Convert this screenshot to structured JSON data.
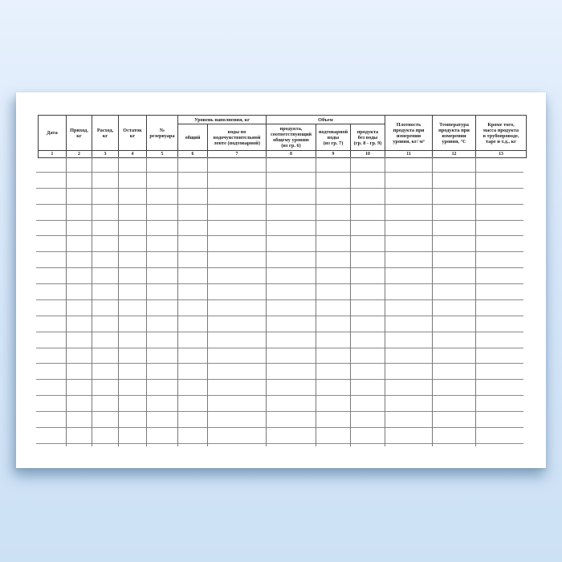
{
  "page": {
    "background_top_color": "#e8f1fd",
    "background_bottom_color": "#cde1f5",
    "sheet_color": "#ffffff",
    "line_color": "#8a8a8a",
    "header_border_color": "#3e3e3e",
    "text_color": "#1c1c1c"
  },
  "table": {
    "group_headers": [
      {
        "label": "Уровень наполнения, кг"
      },
      {
        "label": "Объем"
      }
    ],
    "columns": [
      {
        "num": "1",
        "label": "Дата"
      },
      {
        "num": "2",
        "label": "Приход,\nкг"
      },
      {
        "num": "3",
        "label": "Расход,\nкг"
      },
      {
        "num": "4",
        "label": "Остаток\nкг"
      },
      {
        "num": "5",
        "label": "№\nрезервуара"
      },
      {
        "num": "6",
        "label": "общий"
      },
      {
        "num": "7",
        "label": "воды по\nводочувствительной\nленте (подтоварной)"
      },
      {
        "num": "8",
        "label": "продукта,\nсоответствующий\nобщему уровню\n(из гр. 6)"
      },
      {
        "num": "9",
        "label": "подтоварной\nводы\n(из гр. 7)"
      },
      {
        "num": "10",
        "label": "продукта\nбез воды\n(гр. 8 - гр. 9)"
      },
      {
        "num": "11",
        "label": "Плотность\nпродукта при\nизмерении\nуровня, кг/ м³"
      },
      {
        "num": "12",
        "label": "Температура\nпродукта при\nизмерении\nуровня, °С"
      },
      {
        "num": "13",
        "label": "Кроме того,\nмасса продукта\nв трубопроводе,\nтаре и т.д., кг"
      }
    ],
    "body_rows": 18
  }
}
